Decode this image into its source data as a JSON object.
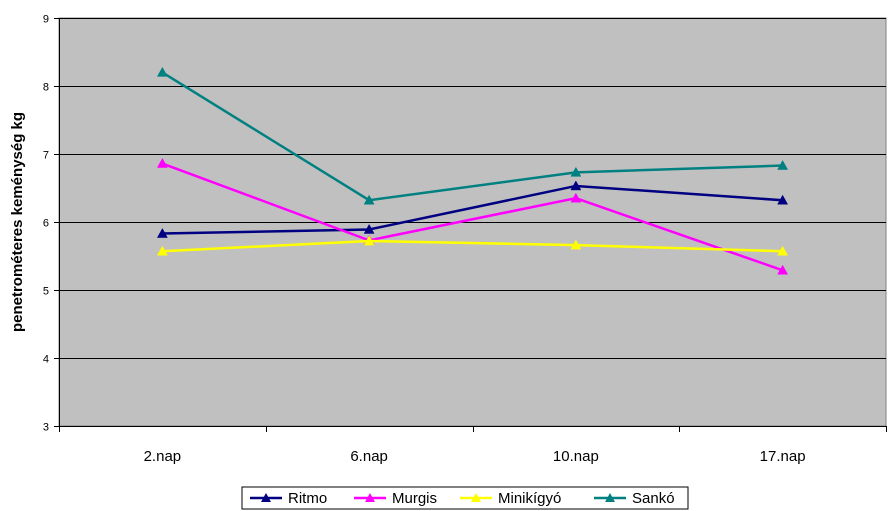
{
  "chart_data": {
    "type": "line",
    "title": "",
    "xlabel": "",
    "ylabel": "penetrométeres keménység kg",
    "categories": [
      "2.nap",
      "6.nap",
      "10.nap",
      "17.nap"
    ],
    "ylim": [
      3,
      9
    ],
    "yticks": [
      "3",
      "4",
      "5",
      "6",
      "7",
      "8",
      "9"
    ],
    "grid": true,
    "legend_position": "bottom",
    "plot_background": "#C0C0C0",
    "series": [
      {
        "name": "Ritmo",
        "color": "#000080",
        "values": [
          5.83,
          5.89,
          6.53,
          6.32
        ]
      },
      {
        "name": "Murgis",
        "color": "#FF00FF",
        "values": [
          6.86,
          5.73,
          6.35,
          5.29
        ]
      },
      {
        "name": "Minikígyó",
        "color": "#FFFF00",
        "values": [
          5.57,
          5.72,
          5.66,
          5.57
        ]
      },
      {
        "name": "Sankó",
        "color": "#008080",
        "values": [
          8.2,
          6.32,
          6.73,
          6.83
        ]
      }
    ]
  }
}
